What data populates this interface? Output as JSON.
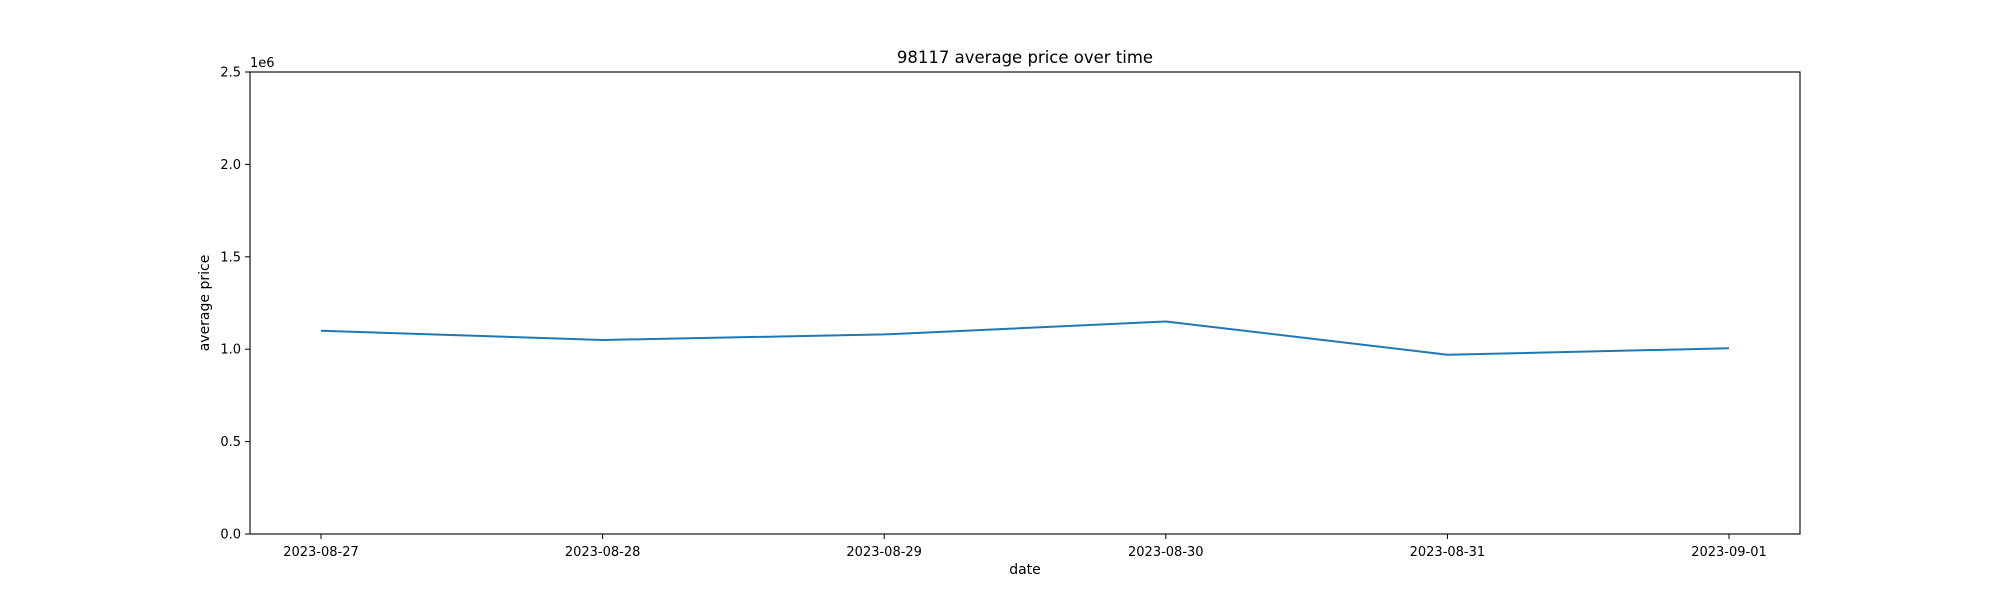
{
  "chart_data": {
    "type": "line",
    "title": "98117 average price over time",
    "xlabel": "date",
    "ylabel": "average price",
    "y_offset_label": "1e6",
    "x": [
      "2023-08-27",
      "2023-08-28",
      "2023-08-29",
      "2023-08-30",
      "2023-08-31",
      "2023-09-01"
    ],
    "series": [
      {
        "values": [
          1.1,
          1.05,
          1.08,
          1.15,
          0.97,
          1.005
        ],
        "color": "#1f77b4"
      }
    ],
    "x_ticks": [
      "2023-08-27",
      "2023-08-28",
      "2023-08-29",
      "2023-08-30",
      "2023-08-31",
      "2023-09-01"
    ],
    "y_ticks": [
      "0.0",
      "0.5",
      "1.0",
      "1.5",
      "2.0",
      "2.5"
    ],
    "ylim": [
      0,
      2.5
    ],
    "y_scale_factor": 1000000,
    "grid": false,
    "legend": "none"
  }
}
